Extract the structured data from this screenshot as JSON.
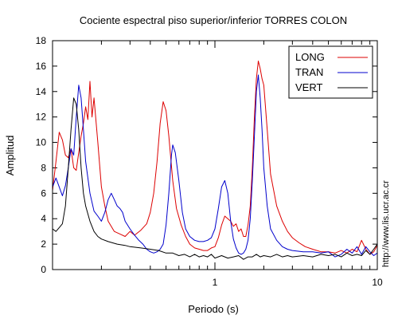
{
  "chart_data": {
    "type": "line",
    "title": "Cociente espectral piso superior/inferior  TORRES COLON",
    "xlabel": "Periodo (s)",
    "ylabel": "Amplitud",
    "side_note": "http://www.lis.ucr.ac.cr",
    "xscale": "log",
    "xlim": [
      0.1,
      10
    ],
    "ylim": [
      0,
      18
    ],
    "yticks": [
      0,
      2,
      4,
      6,
      8,
      10,
      12,
      14,
      16,
      18
    ],
    "xtick_labels": [
      {
        "value": 1,
        "label": "1"
      },
      {
        "value": 10,
        "label": "10"
      }
    ],
    "grid": false,
    "legend_position": "top-right",
    "series": [
      {
        "name": "LONG",
        "color": "#dd0000",
        "points": [
          [
            0.1,
            6.2
          ],
          [
            0.105,
            8.5
          ],
          [
            0.11,
            10.8
          ],
          [
            0.115,
            10.2
          ],
          [
            0.12,
            9.0
          ],
          [
            0.125,
            8.8
          ],
          [
            0.13,
            9.5
          ],
          [
            0.135,
            8.0
          ],
          [
            0.14,
            7.8
          ],
          [
            0.145,
            9.2
          ],
          [
            0.15,
            10.5
          ],
          [
            0.155,
            11.5
          ],
          [
            0.16,
            12.8
          ],
          [
            0.165,
            11.8
          ],
          [
            0.17,
            14.8
          ],
          [
            0.175,
            12.0
          ],
          [
            0.18,
            13.5
          ],
          [
            0.19,
            10.0
          ],
          [
            0.2,
            6.5
          ],
          [
            0.21,
            5.0
          ],
          [
            0.22,
            3.8
          ],
          [
            0.24,
            3.0
          ],
          [
            0.26,
            2.8
          ],
          [
            0.28,
            2.6
          ],
          [
            0.3,
            3.0
          ],
          [
            0.32,
            2.7
          ],
          [
            0.35,
            3.1
          ],
          [
            0.38,
            3.6
          ],
          [
            0.4,
            4.5
          ],
          [
            0.42,
            6.0
          ],
          [
            0.44,
            8.5
          ],
          [
            0.46,
            11.5
          ],
          [
            0.48,
            13.2
          ],
          [
            0.5,
            12.5
          ],
          [
            0.52,
            10.5
          ],
          [
            0.55,
            7.0
          ],
          [
            0.58,
            4.8
          ],
          [
            0.62,
            3.5
          ],
          [
            0.66,
            2.6
          ],
          [
            0.7,
            2.0
          ],
          [
            0.75,
            1.7
          ],
          [
            0.8,
            1.6
          ],
          [
            0.85,
            1.5
          ],
          [
            0.9,
            1.5
          ],
          [
            0.95,
            1.7
          ],
          [
            1.0,
            1.8
          ],
          [
            1.05,
            2.5
          ],
          [
            1.1,
            3.5
          ],
          [
            1.15,
            4.2
          ],
          [
            1.2,
            4.0
          ],
          [
            1.25,
            3.8
          ],
          [
            1.3,
            3.4
          ],
          [
            1.35,
            3.6
          ],
          [
            1.4,
            3.0
          ],
          [
            1.45,
            3.2
          ],
          [
            1.5,
            2.6
          ],
          [
            1.55,
            2.6
          ],
          [
            1.6,
            3.5
          ],
          [
            1.65,
            5.0
          ],
          [
            1.7,
            8.0
          ],
          [
            1.75,
            12.0
          ],
          [
            1.8,
            15.0
          ],
          [
            1.85,
            16.4
          ],
          [
            1.9,
            15.8
          ],
          [
            1.95,
            15.0
          ],
          [
            2.0,
            14.5
          ],
          [
            2.1,
            11.0
          ],
          [
            2.2,
            7.5
          ],
          [
            2.4,
            5.0
          ],
          [
            2.6,
            3.8
          ],
          [
            2.8,
            3.0
          ],
          [
            3.0,
            2.5
          ],
          [
            3.3,
            2.1
          ],
          [
            3.6,
            1.8
          ],
          [
            4.0,
            1.6
          ],
          [
            4.5,
            1.4
          ],
          [
            5.0,
            1.4
          ],
          [
            5.5,
            1.3
          ],
          [
            6.0,
            1.5
          ],
          [
            6.5,
            1.3
          ],
          [
            7.0,
            1.6
          ],
          [
            7.5,
            1.4
          ],
          [
            8.0,
            2.3
          ],
          [
            8.5,
            1.6
          ],
          [
            9.0,
            1.2
          ],
          [
            9.5,
            1.4
          ],
          [
            10.0,
            1.9
          ]
        ]
      },
      {
        "name": "TRAN",
        "color": "#0000cc",
        "points": [
          [
            0.1,
            6.5
          ],
          [
            0.105,
            7.2
          ],
          [
            0.11,
            6.5
          ],
          [
            0.115,
            5.8
          ],
          [
            0.12,
            6.6
          ],
          [
            0.125,
            8.0
          ],
          [
            0.13,
            9.5
          ],
          [
            0.135,
            9.0
          ],
          [
            0.14,
            12.0
          ],
          [
            0.145,
            14.5
          ],
          [
            0.15,
            13.5
          ],
          [
            0.155,
            11.0
          ],
          [
            0.16,
            8.5
          ],
          [
            0.17,
            6.0
          ],
          [
            0.18,
            4.6
          ],
          [
            0.19,
            4.2
          ],
          [
            0.2,
            3.8
          ],
          [
            0.21,
            4.5
          ],
          [
            0.22,
            5.5
          ],
          [
            0.23,
            6.0
          ],
          [
            0.24,
            5.5
          ],
          [
            0.25,
            5.0
          ],
          [
            0.26,
            4.8
          ],
          [
            0.27,
            4.5
          ],
          [
            0.28,
            3.8
          ],
          [
            0.3,
            3.2
          ],
          [
            0.32,
            2.7
          ],
          [
            0.34,
            2.3
          ],
          [
            0.36,
            2.0
          ],
          [
            0.38,
            1.6
          ],
          [
            0.4,
            1.4
          ],
          [
            0.42,
            1.3
          ],
          [
            0.44,
            1.4
          ],
          [
            0.46,
            1.6
          ],
          [
            0.48,
            2.0
          ],
          [
            0.5,
            3.5
          ],
          [
            0.52,
            6.0
          ],
          [
            0.54,
            9.0
          ],
          [
            0.55,
            9.8
          ],
          [
            0.57,
            9.2
          ],
          [
            0.6,
            7.0
          ],
          [
            0.63,
            4.5
          ],
          [
            0.66,
            3.2
          ],
          [
            0.7,
            2.6
          ],
          [
            0.75,
            2.3
          ],
          [
            0.8,
            2.2
          ],
          [
            0.85,
            2.2
          ],
          [
            0.9,
            2.3
          ],
          [
            0.95,
            2.5
          ],
          [
            1.0,
            3.2
          ],
          [
            1.05,
            4.8
          ],
          [
            1.1,
            6.5
          ],
          [
            1.15,
            7.0
          ],
          [
            1.2,
            6.0
          ],
          [
            1.25,
            3.8
          ],
          [
            1.3,
            2.4
          ],
          [
            1.35,
            1.7
          ],
          [
            1.4,
            1.3
          ],
          [
            1.45,
            1.2
          ],
          [
            1.5,
            1.3
          ],
          [
            1.55,
            1.6
          ],
          [
            1.6,
            2.3
          ],
          [
            1.65,
            4.0
          ],
          [
            1.7,
            7.0
          ],
          [
            1.75,
            10.5
          ],
          [
            1.8,
            14.0
          ],
          [
            1.85,
            15.3
          ],
          [
            1.9,
            13.5
          ],
          [
            1.95,
            11.0
          ],
          [
            2.0,
            8.0
          ],
          [
            2.1,
            5.0
          ],
          [
            2.2,
            3.2
          ],
          [
            2.4,
            2.3
          ],
          [
            2.6,
            1.8
          ],
          [
            2.8,
            1.6
          ],
          [
            3.0,
            1.5
          ],
          [
            3.5,
            1.4
          ],
          [
            4.0,
            1.4
          ],
          [
            4.5,
            1.3
          ],
          [
            5.0,
            1.4
          ],
          [
            5.5,
            1.0
          ],
          [
            6.0,
            1.2
          ],
          [
            6.5,
            1.6
          ],
          [
            7.0,
            1.3
          ],
          [
            7.5,
            1.8
          ],
          [
            8.0,
            1.2
          ],
          [
            8.5,
            1.8
          ],
          [
            9.0,
            1.4
          ],
          [
            9.5,
            1.1
          ],
          [
            10.0,
            1.3
          ]
        ]
      },
      {
        "name": "VERT",
        "color": "#000000",
        "points": [
          [
            0.1,
            3.2
          ],
          [
            0.105,
            3.0
          ],
          [
            0.11,
            3.3
          ],
          [
            0.115,
            3.6
          ],
          [
            0.12,
            5.0
          ],
          [
            0.125,
            8.0
          ],
          [
            0.13,
            11.0
          ],
          [
            0.135,
            13.5
          ],
          [
            0.14,
            13.0
          ],
          [
            0.145,
            11.0
          ],
          [
            0.15,
            8.0
          ],
          [
            0.155,
            6.0
          ],
          [
            0.16,
            5.0
          ],
          [
            0.17,
            3.8
          ],
          [
            0.18,
            3.0
          ],
          [
            0.19,
            2.6
          ],
          [
            0.2,
            2.4
          ],
          [
            0.22,
            2.2
          ],
          [
            0.25,
            2.0
          ],
          [
            0.28,
            1.9
          ],
          [
            0.3,
            1.8
          ],
          [
            0.35,
            1.7
          ],
          [
            0.4,
            1.6
          ],
          [
            0.45,
            1.5
          ],
          [
            0.5,
            1.3
          ],
          [
            0.55,
            1.3
          ],
          [
            0.6,
            1.1
          ],
          [
            0.65,
            1.2
          ],
          [
            0.7,
            1.0
          ],
          [
            0.75,
            1.2
          ],
          [
            0.8,
            1.0
          ],
          [
            0.85,
            1.1
          ],
          [
            0.9,
            1.0
          ],
          [
            0.95,
            1.2
          ],
          [
            1.0,
            0.9
          ],
          [
            1.1,
            1.1
          ],
          [
            1.2,
            0.9
          ],
          [
            1.3,
            1.0
          ],
          [
            1.4,
            1.1
          ],
          [
            1.5,
            0.8
          ],
          [
            1.6,
            1.0
          ],
          [
            1.7,
            1.0
          ],
          [
            1.8,
            1.2
          ],
          [
            1.9,
            1.0
          ],
          [
            2.0,
            1.1
          ],
          [
            2.2,
            1.0
          ],
          [
            2.4,
            1.2
          ],
          [
            2.6,
            1.0
          ],
          [
            2.8,
            1.1
          ],
          [
            3.0,
            1.0
          ],
          [
            3.5,
            1.1
          ],
          [
            4.0,
            1.0
          ],
          [
            4.5,
            1.2
          ],
          [
            5.0,
            1.1
          ],
          [
            5.5,
            1.2
          ],
          [
            6.0,
            1.0
          ],
          [
            6.5,
            1.3
          ],
          [
            7.0,
            1.1
          ],
          [
            7.5,
            1.2
          ],
          [
            8.0,
            1.1
          ],
          [
            8.5,
            1.5
          ],
          [
            9.0,
            1.2
          ],
          [
            9.5,
            1.6
          ],
          [
            10.0,
            2.0
          ]
        ]
      }
    ]
  }
}
